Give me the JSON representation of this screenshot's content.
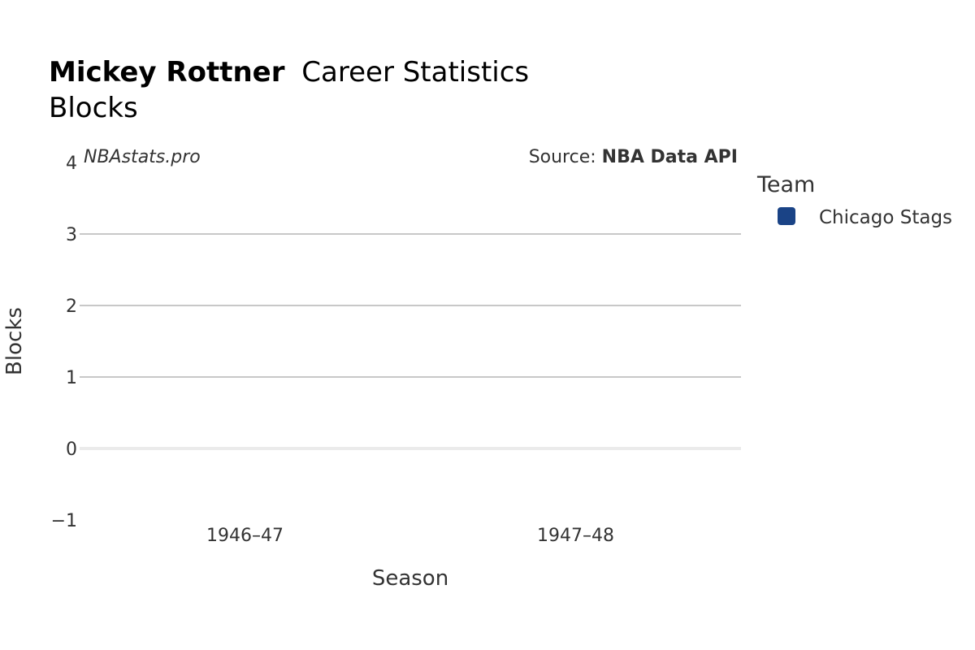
{
  "chart_data": {
    "type": "bar",
    "title_player": "Mickey Rottner",
    "title_rest": "Career Statistics",
    "subtitle": "Blocks",
    "watermark": "NBAstats.pro",
    "source_prefix": "Source: ",
    "source_name": "NBA Data API",
    "xlabel": "Season",
    "ylabel": "Blocks",
    "categories": [
      "1946–47",
      "1947–48"
    ],
    "series": [
      {
        "name": "Chicago Stags",
        "color": "#1a4386",
        "values": [
          null,
          null
        ]
      }
    ],
    "ylim": [
      -1,
      4
    ],
    "yticks": [
      4,
      3,
      2,
      1,
      0,
      -1
    ],
    "ytick_labels": [
      "4",
      "3",
      "2",
      "1",
      "0",
      "−1"
    ],
    "grid": true,
    "legend": {
      "title": "Team",
      "placement": "right"
    }
  }
}
